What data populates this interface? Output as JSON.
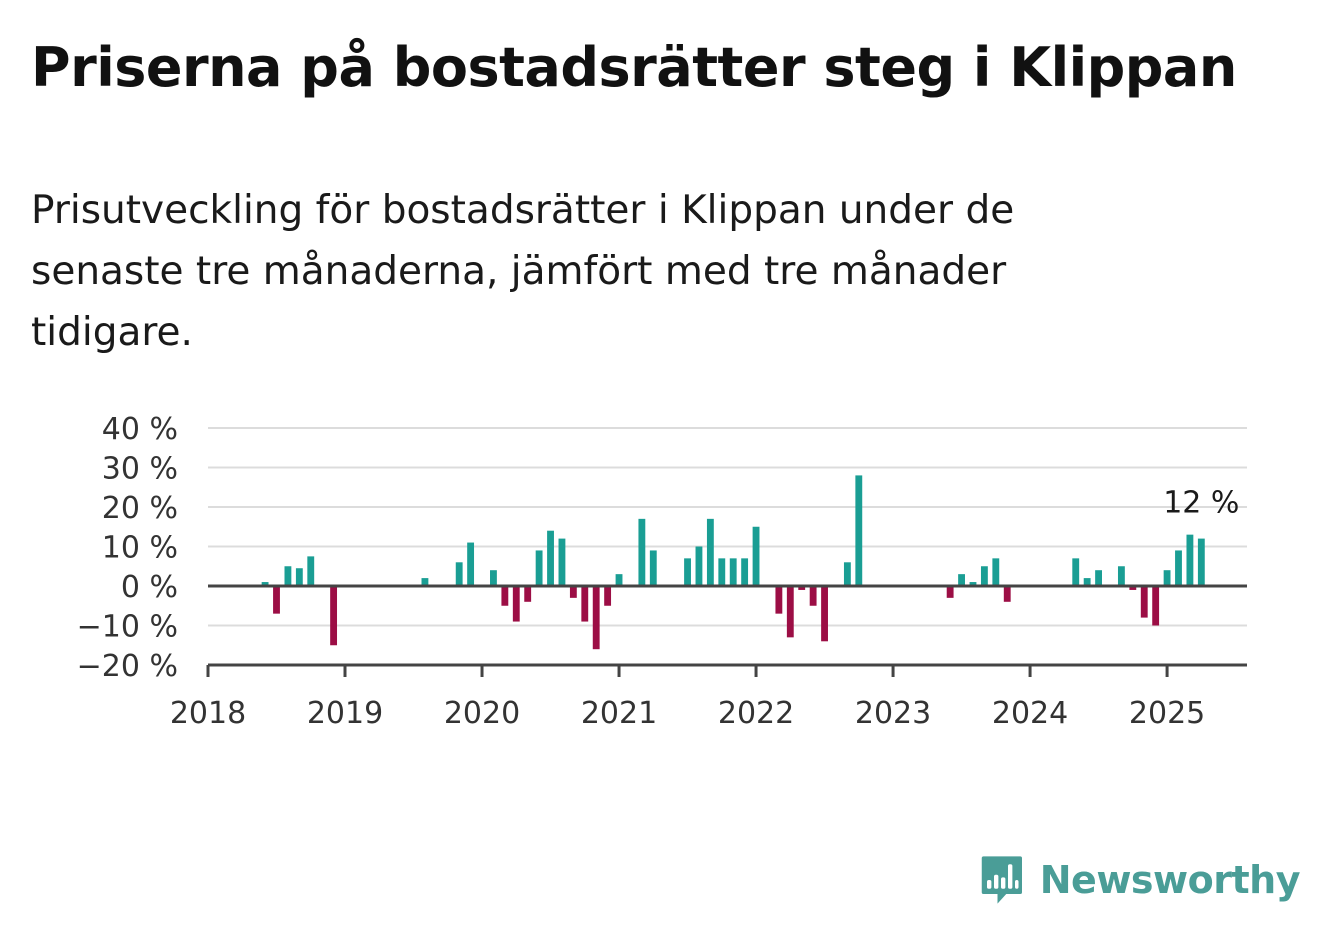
{
  "header": {
    "title": "Priserna på bostadsrätter steg i Klippan",
    "subtitle": "Prisutveckling för bostadsrätter i Klippan under de senaste tre månaderna, jämfört med tre månader tidigare."
  },
  "brand": {
    "name": "Newsworthy",
    "icon": "newsworthy-bar-chart-icon",
    "color": "#4a9d97"
  },
  "chart_data": {
    "type": "bar",
    "title": "Priserna på bostadsrätter steg i Klippan",
    "subtitle": "Prisutveckling för bostadsrätter i Klippan under de senaste tre månaderna, jämfört med tre månader tidigare.",
    "xlabel": "",
    "ylabel": "",
    "ylim": [
      -20,
      40
    ],
    "xlim": [
      "2018-01",
      "2025-08"
    ],
    "y_ticks": [
      40,
      30,
      20,
      10,
      0,
      -10,
      -20
    ],
    "y_tick_labels": [
      "40 %",
      "30 %",
      "20 %",
      "10 %",
      "0 %",
      "−10 %",
      "−20 %"
    ],
    "x_ticks": [
      "2018",
      "2019",
      "2020",
      "2021",
      "2022",
      "2023",
      "2024",
      "2025"
    ],
    "grid": true,
    "legend": "none",
    "colors": {
      "positive": "#1a9e94",
      "negative": "#9c0e45"
    },
    "annotation": {
      "month": "2025-04",
      "text": "12 %"
    },
    "x": [
      "2018-06",
      "2018-07",
      "2018-08",
      "2018-09",
      "2018-10",
      "2018-11",
      "2018-12",
      "2019-08",
      "2019-11",
      "2019-12",
      "2020-02",
      "2020-03",
      "2020-04",
      "2020-05",
      "2020-06",
      "2020-07",
      "2020-08",
      "2020-09",
      "2020-10",
      "2020-11",
      "2020-12",
      "2021-01",
      "2021-03",
      "2021-04",
      "2021-07",
      "2021-08",
      "2021-09",
      "2021-10",
      "2021-11",
      "2021-12",
      "2022-01",
      "2022-03",
      "2022-04",
      "2022-05",
      "2022-06",
      "2022-07",
      "2022-09",
      "2022-10",
      "2023-06",
      "2023-07",
      "2023-08",
      "2023-09",
      "2023-10",
      "2023-11",
      "2024-05",
      "2024-06",
      "2024-07",
      "2024-09",
      "2024-10",
      "2024-11",
      "2024-12",
      "2025-01",
      "2025-02",
      "2025-03",
      "2025-04"
    ],
    "values": [
      1,
      -7,
      5,
      4.5,
      7.5,
      0,
      -15,
      2,
      6,
      11,
      4,
      -5,
      -9,
      -4,
      9,
      14,
      12,
      -3,
      -9,
      -16,
      -5,
      3,
      17,
      9,
      7,
      10,
      17,
      7,
      7,
      7,
      15,
      -7,
      -13,
      -1,
      -5,
      -14,
      6,
      28,
      -3,
      3,
      1,
      5,
      7,
      -4,
      7,
      2,
      4,
      5,
      -1,
      -8,
      -10,
      4,
      9,
      13,
      12
    ]
  }
}
